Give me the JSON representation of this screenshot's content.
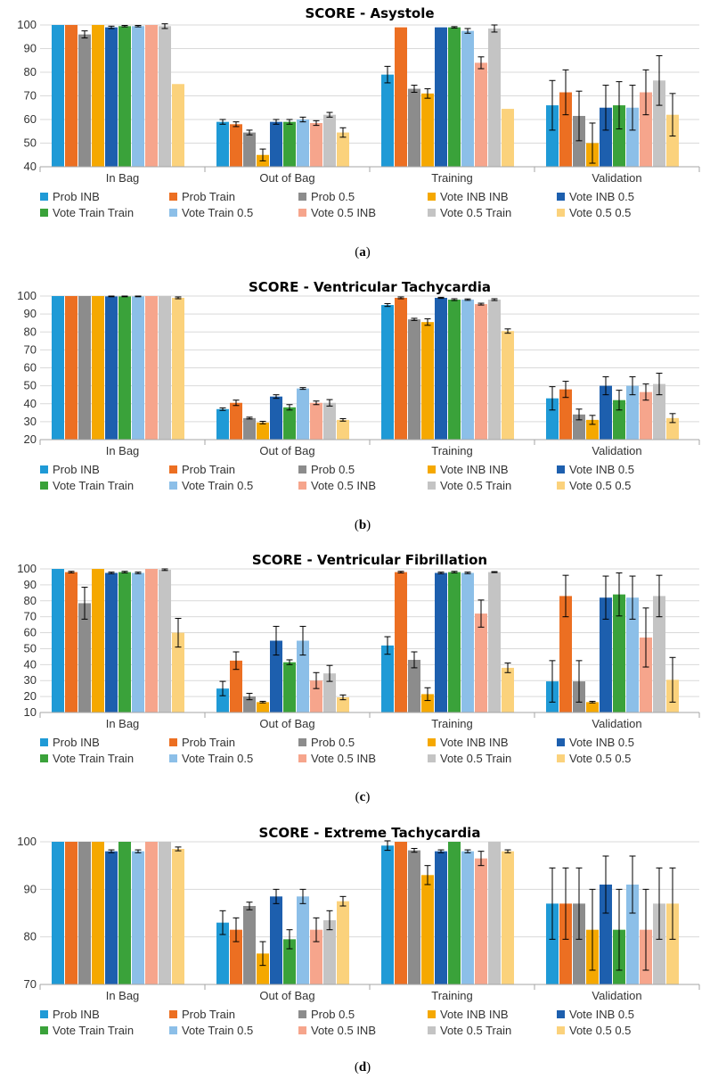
{
  "series_styles": [
    {
      "name": "Prob INB",
      "color": "#1f9ad6"
    },
    {
      "name": "Prob Train",
      "color": "#ec6f22"
    },
    {
      "name": "Prob 0.5",
      "color": "#8c8c8c"
    },
    {
      "name": "Vote INB INB",
      "color": "#f5a800"
    },
    {
      "name": "Vote INB 0.5",
      "color": "#1d5fae"
    },
    {
      "name": "Vote Train Train",
      "color": "#3aa23a"
    },
    {
      "name": "Vote Train 0.5",
      "color": "#8cbfe8"
    },
    {
      "name": "Vote 0.5 INB",
      "color": "#f6a58c"
    },
    {
      "name": "Vote 0.5 Train",
      "color": "#c4c4c4"
    },
    {
      "name": "Vote 0.5 0.5",
      "color": "#fbd27c"
    }
  ],
  "chart_data": [
    {
      "type": "bar",
      "title": "SCORE - Asystole",
      "caption_prefix": "(",
      "caption_letter": "a",
      "caption_suffix": ")",
      "categories": [
        "In Bag",
        "Out of Bag",
        "Training",
        "Validation"
      ],
      "ylim": [
        40,
        100
      ],
      "yticks": [
        40,
        50,
        60,
        70,
        80,
        90,
        100
      ],
      "series": [
        {
          "name": "Prob INB",
          "values": [
            100,
            59,
            79,
            66
          ],
          "errors": [
            0,
            1,
            3.5,
            10.5
          ]
        },
        {
          "name": "Prob Train",
          "values": [
            100,
            58,
            99,
            71.5
          ],
          "errors": [
            0,
            1,
            0,
            9.5
          ]
        },
        {
          "name": "Prob 0.5",
          "values": [
            96,
            54.5,
            73,
            61.5
          ],
          "errors": [
            1.5,
            1,
            1.5,
            10.5
          ]
        },
        {
          "name": "Vote INB INB",
          "values": [
            100,
            45,
            71,
            50
          ],
          "errors": [
            0,
            2.5,
            2,
            8.5
          ]
        },
        {
          "name": "Vote INB 0.5",
          "values": [
            99,
            59,
            99,
            65
          ],
          "errors": [
            0.5,
            1,
            0,
            9.5
          ]
        },
        {
          "name": "Vote Train Train",
          "values": [
            99.5,
            59,
            99,
            66
          ],
          "errors": [
            0.3,
            1,
            0.3,
            10
          ]
        },
        {
          "name": "Vote Train 0.5",
          "values": [
            99.5,
            60,
            97.5,
            65
          ],
          "errors": [
            0.3,
            1,
            1,
            9.5
          ]
        },
        {
          "name": "Vote 0.5 INB",
          "values": [
            100,
            58.5,
            84,
            71.5
          ],
          "errors": [
            0,
            1,
            2.5,
            9.5
          ]
        },
        {
          "name": "Vote 0.5 Train",
          "values": [
            99.5,
            62,
            98.5,
            76.5
          ],
          "errors": [
            1,
            1,
            1.5,
            10.5
          ]
        },
        {
          "name": "Vote 0.5 0.5",
          "values": [
            75,
            54.5,
            64.5,
            62
          ],
          "errors": [
            0,
            2,
            0,
            9
          ]
        }
      ]
    },
    {
      "type": "bar",
      "title": "SCORE - Ventricular Tachycardia",
      "caption_prefix": "(",
      "caption_letter": "b",
      "caption_suffix": ")",
      "categories": [
        "In Bag",
        "Out of Bag",
        "Training",
        "Validation"
      ],
      "ylim": [
        20,
        100
      ],
      "yticks": [
        20,
        30,
        40,
        50,
        60,
        70,
        80,
        90,
        100
      ],
      "series": [
        {
          "name": "Prob INB",
          "values": [
            100,
            37,
            95,
            43
          ],
          "errors": [
            0,
            0.7,
            0.8,
            6.5
          ]
        },
        {
          "name": "Prob Train",
          "values": [
            100,
            40.5,
            99,
            48
          ],
          "errors": [
            0,
            1.5,
            0.5,
            4.5
          ]
        },
        {
          "name": "Prob 0.5",
          "values": [
            100,
            32,
            87,
            34
          ],
          "errors": [
            0,
            0.5,
            0.6,
            3
          ]
        },
        {
          "name": "Vote INB INB",
          "values": [
            100,
            29.5,
            85.5,
            31
          ],
          "errors": [
            0,
            0.7,
            1.8,
            2.5
          ]
        },
        {
          "name": "Vote INB 0.5",
          "values": [
            99.8,
            44,
            99,
            50
          ],
          "errors": [
            0.2,
            1,
            0.3,
            5
          ]
        },
        {
          "name": "Vote Train Train",
          "values": [
            99.8,
            38,
            98,
            42
          ],
          "errors": [
            0.2,
            1.5,
            0.5,
            5.5
          ]
        },
        {
          "name": "Vote Train 0.5",
          "values": [
            99.8,
            48.5,
            98,
            50
          ],
          "errors": [
            0.2,
            0.5,
            0.4,
            5
          ]
        },
        {
          "name": "Vote 0.5 INB",
          "values": [
            100,
            40.5,
            95.5,
            46.5
          ],
          "errors": [
            0,
            1,
            0.5,
            4.5
          ]
        },
        {
          "name": "Vote 0.5 Train",
          "values": [
            100,
            40.5,
            98,
            51
          ],
          "errors": [
            0,
            1.8,
            0.5,
            6
          ]
        },
        {
          "name": "Vote 0.5 0.5",
          "values": [
            99,
            31,
            80.5,
            32
          ],
          "errors": [
            0.5,
            0.7,
            1.2,
            2.5
          ]
        }
      ]
    },
    {
      "type": "bar",
      "title": "SCORE - Ventricular Fibrillation",
      "caption_prefix": "(",
      "caption_letter": "c",
      "caption_suffix": ")",
      "categories": [
        "In Bag",
        "Out of Bag",
        "Training",
        "Validation"
      ],
      "ylim": [
        10,
        100
      ],
      "yticks": [
        10,
        20,
        30,
        40,
        50,
        60,
        70,
        80,
        90,
        100
      ],
      "series": [
        {
          "name": "Prob INB",
          "values": [
            100,
            25,
            52,
            29.5
          ],
          "errors": [
            0,
            4.5,
            5.5,
            13
          ]
        },
        {
          "name": "Prob Train",
          "values": [
            98,
            42.5,
            98,
            83
          ],
          "errors": [
            0.5,
            5.5,
            0.5,
            13
          ]
        },
        {
          "name": "Prob 0.5",
          "values": [
            78.5,
            20,
            43,
            29.5
          ],
          "errors": [
            10,
            2,
            5,
            13
          ]
        },
        {
          "name": "Vote INB INB",
          "values": [
            100,
            16.5,
            21.5,
            16.5
          ],
          "errors": [
            0,
            0.5,
            4,
            0.5
          ]
        },
        {
          "name": "Vote INB 0.5",
          "values": [
            97.5,
            55,
            97.5,
            82
          ],
          "errors": [
            0.5,
            9,
            0.5,
            13.5
          ]
        },
        {
          "name": "Vote Train Train",
          "values": [
            98,
            41.5,
            98,
            84
          ],
          "errors": [
            0.5,
            1.5,
            0.5,
            13.5
          ]
        },
        {
          "name": "Vote Train 0.5",
          "values": [
            97.5,
            55,
            97.5,
            82
          ],
          "errors": [
            0.5,
            9,
            0.5,
            13.5
          ]
        },
        {
          "name": "Vote 0.5 INB",
          "values": [
            100,
            30,
            72,
            57
          ],
          "errors": [
            0,
            5,
            8.5,
            18.5
          ]
        },
        {
          "name": "Vote 0.5 Train",
          "values": [
            99.5,
            34.5,
            98,
            83
          ],
          "errors": [
            0.5,
            5,
            0.3,
            13
          ]
        },
        {
          "name": "Vote 0.5 0.5",
          "values": [
            60,
            19.5,
            38,
            30.5
          ],
          "errors": [
            9,
            1.5,
            3,
            14
          ]
        }
      ]
    },
    {
      "type": "bar",
      "title": "SCORE - Extreme Tachycardia",
      "caption_prefix": "(",
      "caption_letter": "d",
      "caption_suffix": ")",
      "categories": [
        "In Bag",
        "Out of Bag",
        "Training",
        "Validation"
      ],
      "ylim": [
        70,
        100
      ],
      "yticks": [
        70,
        80,
        90,
        100
      ],
      "series": [
        {
          "name": "Prob INB",
          "values": [
            100,
            83,
            99.2,
            87
          ],
          "errors": [
            0,
            2.5,
            1,
            7.5
          ]
        },
        {
          "name": "Prob Train",
          "values": [
            100,
            81.5,
            100,
            87
          ],
          "errors": [
            0,
            2.5,
            0,
            7.5
          ]
        },
        {
          "name": "Prob 0.5",
          "values": [
            100,
            86.5,
            98.2,
            87
          ],
          "errors": [
            0,
            0.8,
            0.4,
            7.5
          ]
        },
        {
          "name": "Vote INB INB",
          "values": [
            100,
            76.5,
            93,
            81.5
          ],
          "errors": [
            0,
            2.5,
            2,
            8.5
          ]
        },
        {
          "name": "Vote INB 0.5",
          "values": [
            98,
            88.5,
            98,
            91
          ],
          "errors": [
            0.3,
            1.5,
            0.3,
            6
          ]
        },
        {
          "name": "Vote Train Train",
          "values": [
            100,
            79.5,
            100,
            81.5
          ],
          "errors": [
            0,
            2,
            0,
            8.5
          ]
        },
        {
          "name": "Vote Train 0.5",
          "values": [
            98,
            88.5,
            98,
            91
          ],
          "errors": [
            0.3,
            1.5,
            0.3,
            6
          ]
        },
        {
          "name": "Vote 0.5 INB",
          "values": [
            100,
            81.5,
            96.5,
            81.5
          ],
          "errors": [
            0,
            2.5,
            1.5,
            8.5
          ]
        },
        {
          "name": "Vote 0.5 Train",
          "values": [
            100,
            83.5,
            100,
            87
          ],
          "errors": [
            0,
            2,
            0,
            7.5
          ]
        },
        {
          "name": "Vote 0.5 0.5",
          "values": [
            98.5,
            87.5,
            98,
            87
          ],
          "errors": [
            0.4,
            1,
            0.3,
            7.5
          ]
        }
      ]
    }
  ]
}
